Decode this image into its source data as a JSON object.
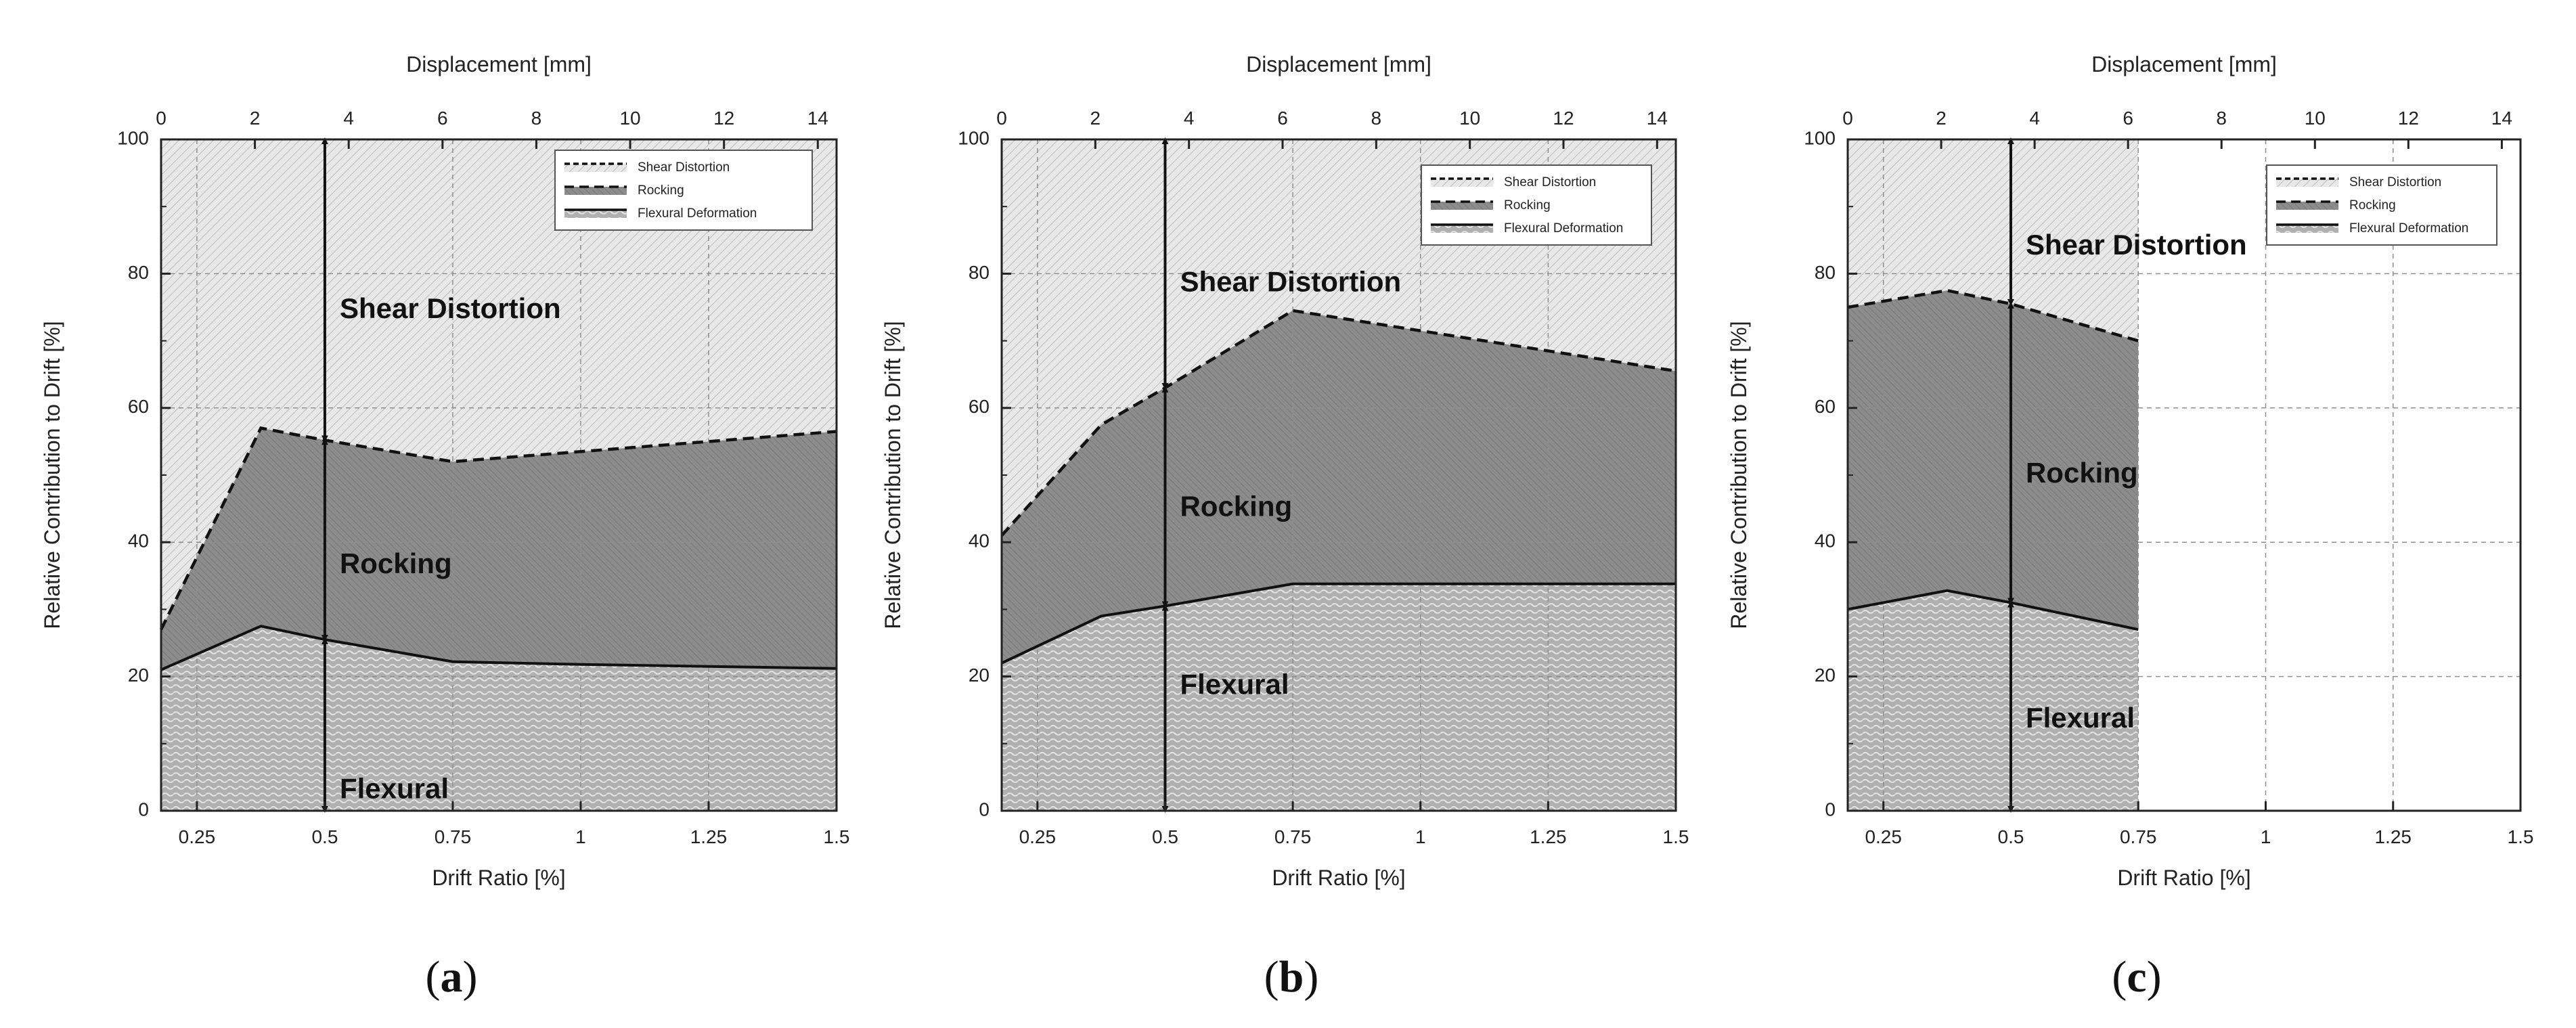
{
  "figure": {
    "shared": {
      "top_axis_label": "Displacement [mm]",
      "bottom_axis_label": "Drift Ratio [%]",
      "y_axis_label": "Relative Contribution to Drift [%]",
      "legend": [
        "Shear Distortion",
        "Rocking",
        "Flexural Deformation"
      ],
      "colors": {
        "shear": "#e6e6e6",
        "rocking": "#8a8a8a",
        "flexural": "#b3b3b3",
        "line": "#111111",
        "grid": "#9a9a9a"
      }
    }
  },
  "chart_data": [
    {
      "type": "area",
      "panel": "a",
      "caption_open": "(",
      "caption_letter": "a",
      "caption_close": ")",
      "xlabel": "Drift Ratio [%]",
      "ylabel": "Relative Contribution to Drift [%]",
      "top_xlabel": "Displacement [mm]",
      "xlim": [
        0.18,
        1.5
      ],
      "ylim": [
        0,
        100
      ],
      "top_xlim": [
        0,
        14.4
      ],
      "x_ticks": [
        "0.25",
        "0.5",
        "0.75",
        "1",
        "1.25",
        "1.5"
      ],
      "x_tick_values": [
        0.25,
        0.5,
        0.75,
        1,
        1.25,
        1.5
      ],
      "y_ticks": [
        "0",
        "20",
        "40",
        "60",
        "80",
        "100"
      ],
      "y_tick_values": [
        0,
        20,
        40,
        60,
        80,
        100
      ],
      "top_ticks": [
        "0",
        "2",
        "4",
        "6",
        "8",
        "10",
        "12",
        "14"
      ],
      "top_tick_values": [
        0,
        2,
        4,
        6,
        8,
        10,
        12,
        14
      ],
      "x": [
        0.18,
        0.375,
        0.5,
        0.75,
        1.0,
        1.5
      ],
      "series": [
        {
          "name": "Flexural Deformation",
          "values": [
            21,
            27.5,
            25.5,
            22.2,
            21.8,
            21.2
          ]
        },
        {
          "name": "Rocking",
          "values": [
            27,
            57,
            55.2,
            52,
            53.5,
            56.5
          ]
        },
        {
          "name": "Shear Distortion",
          "values": [
            100,
            100,
            100,
            100,
            100,
            100
          ]
        }
      ],
      "annotation_x": 0.5,
      "region_labels": [
        {
          "text": "Shear Distortion",
          "x": 0.5,
          "y": 74.5
        },
        {
          "text": "Rocking",
          "x": 0.5,
          "y": 36.5
        },
        {
          "text": "Flexural",
          "x": 0.5,
          "y": 3
        }
      ],
      "legend_position": "top-right"
    },
    {
      "type": "area",
      "panel": "b",
      "caption_open": "(",
      "caption_letter": "b",
      "caption_close": ")",
      "xlabel": "Drift Ratio [%]",
      "ylabel": "Relative Contribution to Drift [%]",
      "top_xlabel": "Displacement [mm]",
      "xlim": [
        0.18,
        1.5
      ],
      "ylim": [
        0,
        100
      ],
      "top_xlim": [
        0,
        14.4
      ],
      "x_ticks": [
        "0.25",
        "0.5",
        "0.75",
        "1",
        "1.25",
        "1.5"
      ],
      "x_tick_values": [
        0.25,
        0.5,
        0.75,
        1,
        1.25,
        1.5
      ],
      "y_ticks": [
        "0",
        "20",
        "40",
        "60",
        "80",
        "100"
      ],
      "y_tick_values": [
        0,
        20,
        40,
        60,
        80,
        100
      ],
      "top_ticks": [
        "0",
        "2",
        "4",
        "6",
        "8",
        "10",
        "12",
        "14"
      ],
      "top_tick_values": [
        0,
        2,
        4,
        6,
        8,
        10,
        12,
        14
      ],
      "x": [
        0.18,
        0.375,
        0.5,
        0.75,
        1.0,
        1.5
      ],
      "series": [
        {
          "name": "Flexural Deformation",
          "values": [
            22,
            29,
            30.5,
            33.8,
            33.8,
            33.8
          ]
        },
        {
          "name": "Rocking",
          "values": [
            41,
            57.5,
            63,
            74.5,
            71.5,
            65.5
          ]
        },
        {
          "name": "Shear Distortion",
          "values": [
            100,
            100,
            100,
            100,
            100,
            100
          ]
        }
      ],
      "annotation_x": 0.5,
      "region_labels": [
        {
          "text": "Shear Distortion",
          "x": 0.5,
          "y": 78.5
        },
        {
          "text": "Rocking",
          "x": 0.5,
          "y": 45
        },
        {
          "text": "Flexural",
          "x": 0.5,
          "y": 18.5
        }
      ],
      "legend_position": "top-right"
    },
    {
      "type": "area",
      "panel": "c",
      "caption_open": "(",
      "caption_letter": "c",
      "caption_close": ")",
      "xlabel": "Drift Ratio [%]",
      "ylabel": "Relative Contribution to Drift [%]",
      "top_xlabel": "Displacement [mm]",
      "xlim": [
        0.18,
        1.5
      ],
      "ylim": [
        0,
        100
      ],
      "top_xlim": [
        0,
        14.4
      ],
      "x_ticks": [
        "0.25",
        "0.5",
        "0.75",
        "1",
        "1.25",
        "1.5"
      ],
      "x_tick_values": [
        0.25,
        0.5,
        0.75,
        1,
        1.25,
        1.5
      ],
      "y_ticks": [
        "0",
        "20",
        "40",
        "60",
        "80",
        "100"
      ],
      "y_tick_values": [
        0,
        20,
        40,
        60,
        80,
        100
      ],
      "top_ticks": [
        "0",
        "2",
        "4",
        "6",
        "8",
        "10",
        "12",
        "14"
      ],
      "top_tick_values": [
        0,
        2,
        4,
        6,
        8,
        10,
        12,
        14
      ],
      "x": [
        0.18,
        0.375,
        0.5,
        0.75
      ],
      "series": [
        {
          "name": "Flexural Deformation",
          "values": [
            30,
            32.8,
            31,
            27
          ]
        },
        {
          "name": "Rocking",
          "values": [
            75,
            77.5,
            75.5,
            70
          ]
        },
        {
          "name": "Shear Distortion",
          "values": [
            100,
            100,
            100,
            100
          ]
        }
      ],
      "annotation_x": 0.5,
      "region_labels": [
        {
          "text": "Shear Distortion",
          "x": 0.5,
          "y": 84
        },
        {
          "text": "Rocking",
          "x": 0.5,
          "y": 50
        },
        {
          "text": "Flexural",
          "x": 0.5,
          "y": 13.5
        }
      ],
      "legend_position": "top-right"
    }
  ]
}
